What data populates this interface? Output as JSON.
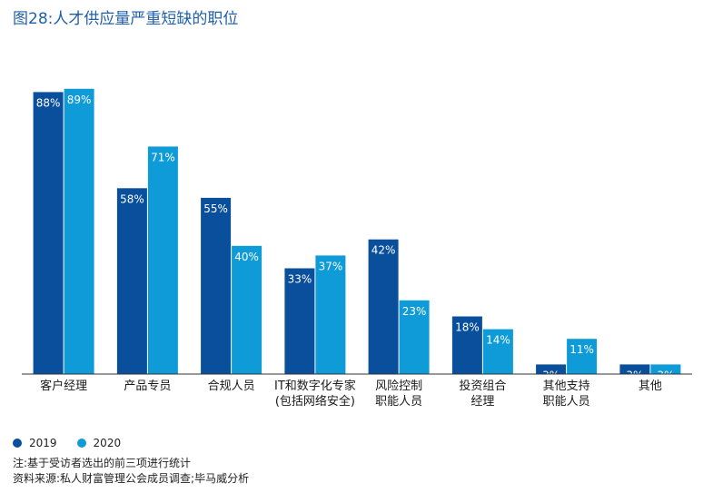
{
  "title": "图28:人才供应量严重短缺的职位",
  "chart_data": {
    "type": "bar",
    "title": "图28:人才供应量严重短缺的职位",
    "categories": [
      [
        "客户经理"
      ],
      [
        "产品专员"
      ],
      [
        "合规人员"
      ],
      [
        "IT和数字化专家",
        "(包括网络安全)"
      ],
      [
        "风险控制",
        "职能人员"
      ],
      [
        "投资组合",
        "经理"
      ],
      [
        "其他支持",
        "职能人员"
      ],
      [
        "其他"
      ]
    ],
    "series": [
      {
        "name": "2019",
        "color": "#0a4f9c",
        "values": [
          88,
          58,
          55,
          33,
          42,
          18,
          3,
          3
        ]
      },
      {
        "name": "2020",
        "color": "#0f9ad8",
        "values": [
          89,
          71,
          40,
          37,
          23,
          14,
          11,
          3
        ]
      }
    ],
    "value_suffix": "%",
    "ylim": [
      0,
      100
    ],
    "grid": false,
    "legend_position": "bottom-left"
  },
  "notes": {
    "note": "注:基于受访者选出的前三项进行统计",
    "source": "资料来源:私人财富管理公会成员调查;毕马威分析"
  }
}
